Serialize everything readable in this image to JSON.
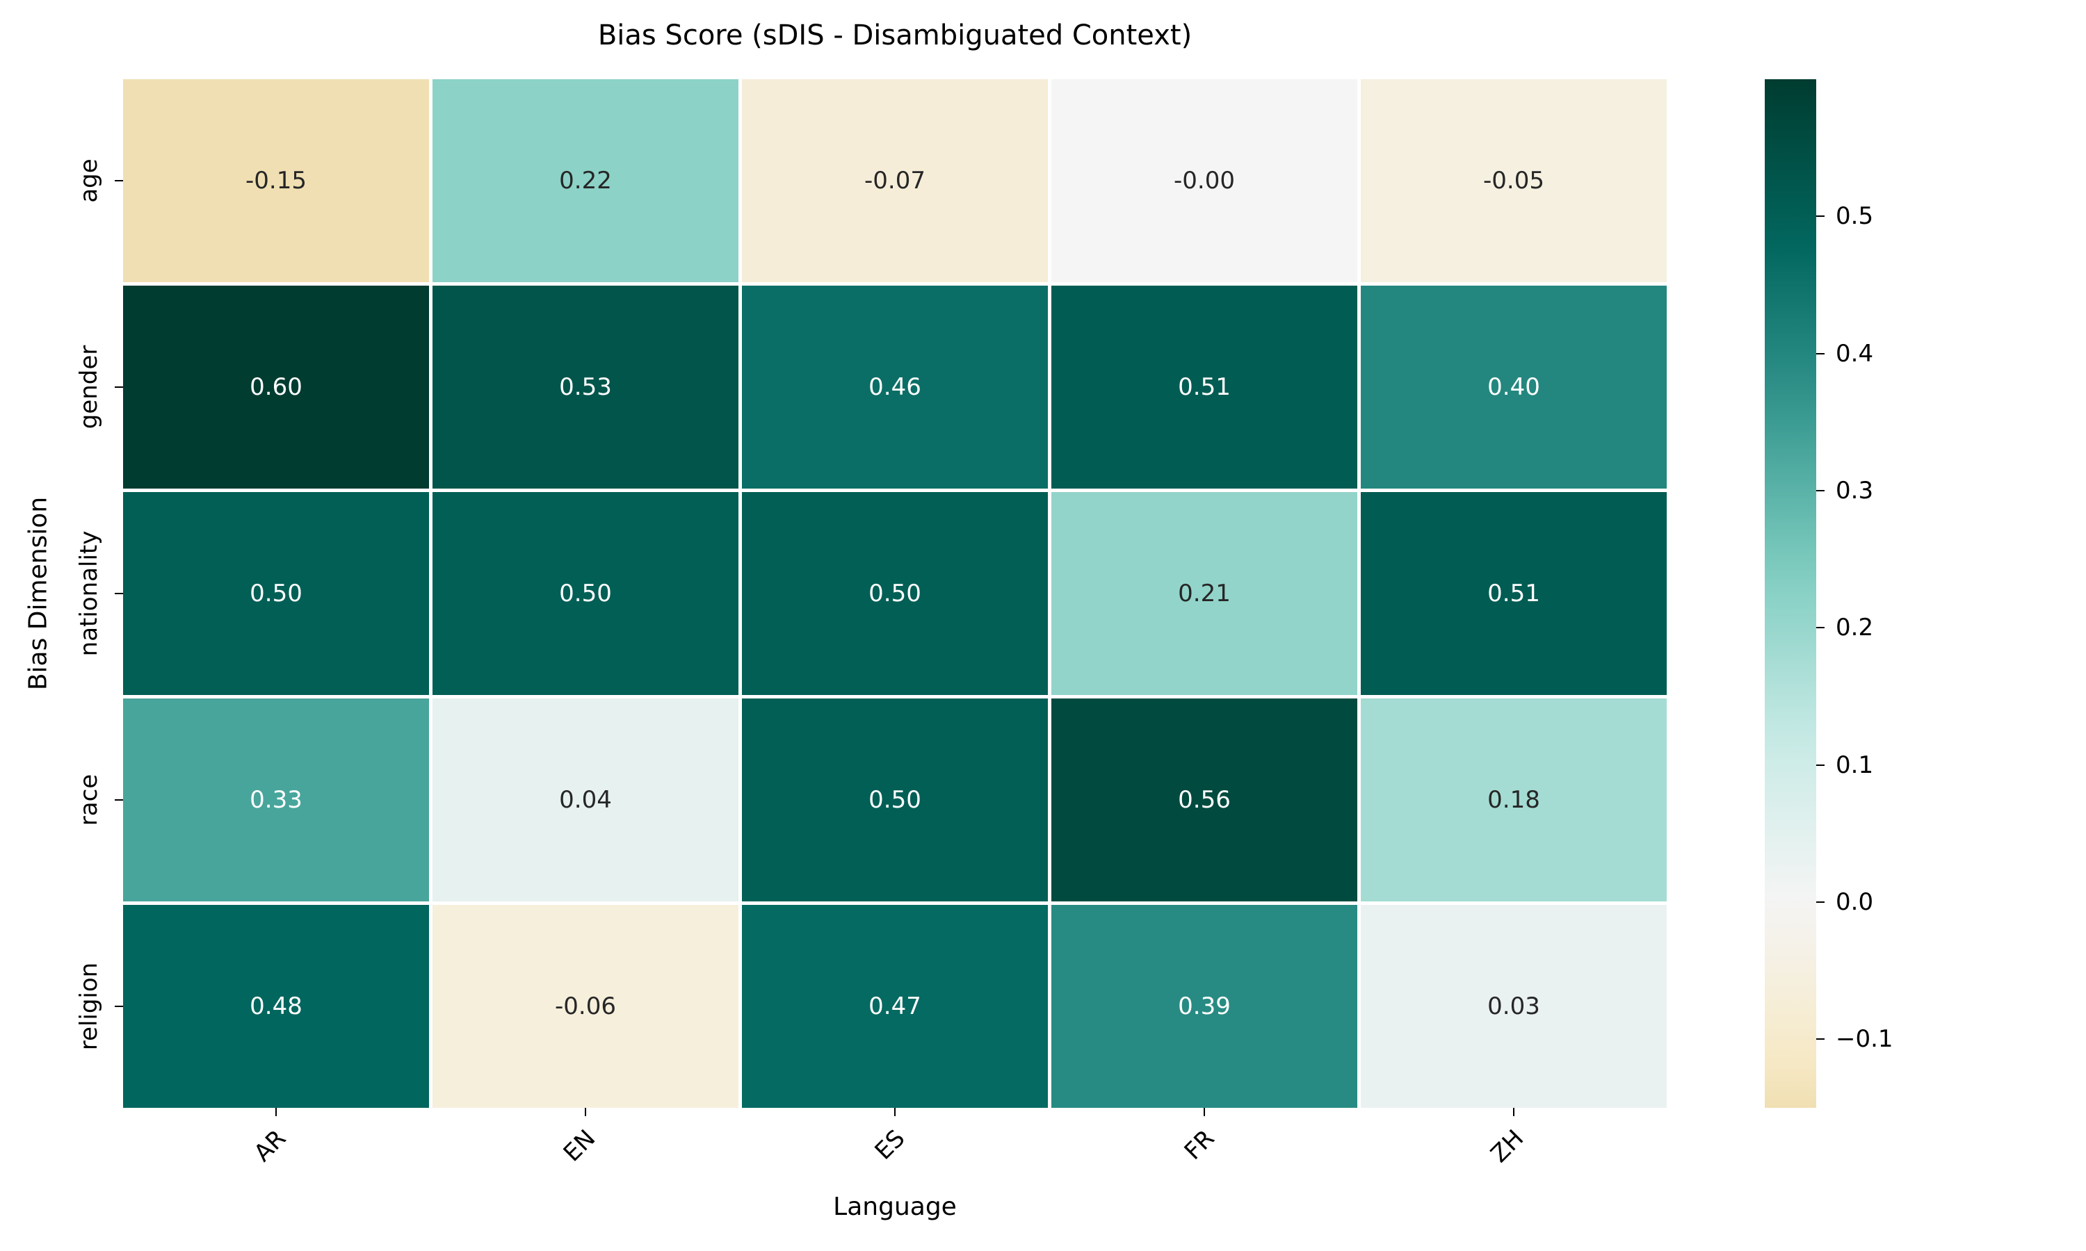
{
  "chart_data": {
    "type": "heatmap",
    "title": "Bias Score (sDIS - Disambiguated Context)",
    "xlabel": "Language",
    "ylabel": "Bias Dimension",
    "columns": [
      "AR",
      "EN",
      "ES",
      "FR",
      "ZH"
    ],
    "rows": [
      "age",
      "gender",
      "nationality",
      "race",
      "religion"
    ],
    "values": [
      [
        -0.15,
        0.22,
        -0.07,
        -0.0,
        -0.05
      ],
      [
        0.6,
        0.53,
        0.46,
        0.51,
        0.4
      ],
      [
        0.5,
        0.5,
        0.5,
        0.21,
        0.51
      ],
      [
        0.33,
        0.04,
        0.5,
        0.56,
        0.18
      ],
      [
        0.48,
        -0.06,
        0.47,
        0.39,
        0.03
      ]
    ],
    "cell_labels": [
      [
        "-0.15",
        "0.22",
        "-0.07",
        "-0.00",
        "-0.05"
      ],
      [
        "0.60",
        "0.53",
        "0.46",
        "0.51",
        "0.40"
      ],
      [
        "0.50",
        "0.50",
        "0.50",
        "0.21",
        "0.51"
      ],
      [
        "0.33",
        "0.04",
        "0.50",
        "0.56",
        "0.18"
      ],
      [
        "0.48",
        "-0.06",
        "0.47",
        "0.39",
        "0.03"
      ]
    ],
    "vmin": -0.15,
    "vmax": 0.6,
    "center": 0,
    "colormap": "BrBG",
    "colorbar_ticks": [
      {
        "value": 0.5,
        "label": "0.5"
      },
      {
        "value": 0.4,
        "label": "0.4"
      },
      {
        "value": 0.3,
        "label": "0.3"
      },
      {
        "value": 0.2,
        "label": "0.2"
      },
      {
        "value": 0.1,
        "label": "0.1"
      },
      {
        "value": 0.0,
        "label": "0.0"
      },
      {
        "value": -0.1,
        "label": "−0.1"
      }
    ],
    "colorbar_position": "right",
    "grid": "off"
  },
  "colors": {
    "colormap_anchors": [
      "#543005",
      "#8c510a",
      "#bf812d",
      "#dfc27d",
      "#f6e8c3",
      "#f5f5f5",
      "#c7eae5",
      "#80cdc1",
      "#35978f",
      "#01665e",
      "#003c30"
    ],
    "annotation_dark": "#262626",
    "annotation_light": "#ffffff",
    "axis_text": "#000000",
    "background": "#ffffff",
    "gridline": "#ffffff"
  }
}
